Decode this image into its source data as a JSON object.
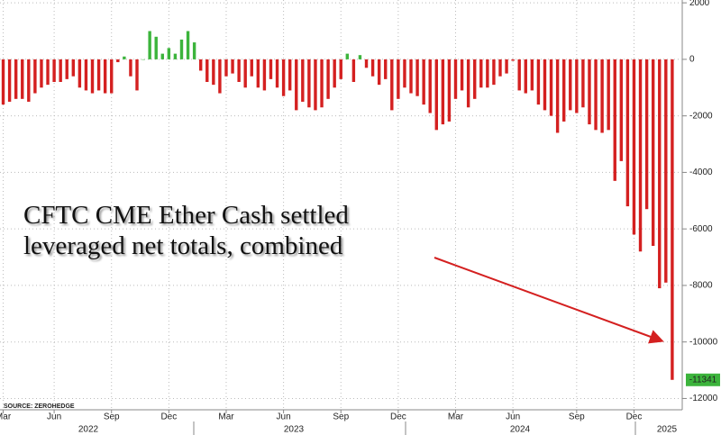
{
  "chart_data": {
    "type": "bar",
    "annotation": [
      "CFTC CME Ether Cash settled",
      "leveraged net totals, combined"
    ],
    "source": "SOURCE: ZEROHEDGE",
    "categories": [
      "Mar",
      null,
      null,
      null,
      null,
      null,
      null,
      null,
      "Jun",
      null,
      null,
      null,
      null,
      null,
      null,
      null,
      null,
      "Sep",
      null,
      null,
      null,
      null,
      null,
      null,
      null,
      null,
      "Dec",
      null,
      null,
      null,
      null,
      null,
      null,
      null,
      null,
      "Mar",
      null,
      null,
      null,
      null,
      null,
      null,
      null,
      null,
      "Jun",
      null,
      null,
      null,
      null,
      null,
      null,
      null,
      null,
      "Sep",
      null,
      null,
      null,
      null,
      null,
      null,
      null,
      null,
      "Dec",
      null,
      null,
      null,
      null,
      null,
      null,
      null,
      null,
      "Mar",
      null,
      null,
      null,
      null,
      null,
      null,
      null,
      null,
      "Jun",
      null,
      null,
      null,
      null,
      null,
      null,
      null,
      null,
      null,
      "Sep",
      null,
      null,
      null,
      null,
      null,
      null,
      null,
      null,
      "Dec",
      null,
      null,
      null,
      null,
      null,
      null
    ],
    "x_group_labels": [
      "2022",
      "2023",
      "2024",
      "2025"
    ],
    "values": [
      -1600,
      -1500,
      -1400,
      -1400,
      -1500,
      -1200,
      -1000,
      -900,
      -800,
      -800,
      -700,
      -600,
      -1000,
      -1100,
      -1200,
      -1100,
      -1200,
      -1200,
      -100,
      100,
      -600,
      -1100,
      0,
      1000,
      800,
      200,
      400,
      200,
      700,
      1000,
      600,
      -400,
      -800,
      -900,
      -1200,
      -600,
      -500,
      -800,
      -1000,
      -600,
      -1000,
      -1100,
      -700,
      -1000,
      -1300,
      -1100,
      -1800,
      -1500,
      -1700,
      -1800,
      -1700,
      -1400,
      -1000,
      -700,
      200,
      -800,
      150,
      -300,
      -600,
      -900,
      -700,
      -1800,
      -1400,
      -1000,
      -1200,
      -1300,
      -1600,
      -1900,
      -2500,
      -2300,
      -2200,
      -1400,
      -1100,
      -1700,
      -1400,
      -1000,
      -1000,
      -900,
      -600,
      -500,
      -50,
      -1100,
      -1200,
      -1100,
      -1600,
      -1800,
      -2000,
      -2600,
      -2200,
      -1800,
      -1900,
      -1700,
      -2300,
      -2500,
      -2600,
      -2500,
      -4300,
      -3600,
      -5200,
      -6200,
      -6800,
      -5300,
      -6600,
      -8100,
      -7900,
      -11341
    ],
    "positive_color": "#3cb43c",
    "negative_color": "#d42020",
    "ylim": [
      -12400,
      2100
    ],
    "yticks": [
      2000,
      0,
      -2000,
      -4000,
      -6000,
      -8000,
      -10000,
      -12000
    ],
    "grid": true
  }
}
